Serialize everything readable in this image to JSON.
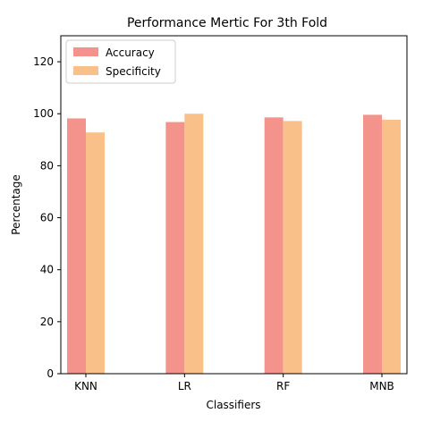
{
  "chart_data": {
    "type": "bar",
    "title": "Performance Mertic For 3th Fold",
    "xlabel": "Classifiers",
    "ylabel": "Percentage",
    "categories": [
      "KNN",
      "LR",
      "RF",
      "MNB"
    ],
    "series": [
      {
        "name": "Accuracy",
        "values": [
          98.2,
          96.8,
          98.6,
          99.6
        ],
        "color": "#f4938b"
      },
      {
        "name": "Specificity",
        "values": [
          92.8,
          100.0,
          97.2,
          97.7
        ],
        "color": "#f9c08a"
      }
    ],
    "ylim": [
      0,
      130
    ],
    "yticks": [
      0,
      20,
      40,
      60,
      80,
      100,
      120
    ],
    "grid": false,
    "legend_position": "top-left"
  }
}
